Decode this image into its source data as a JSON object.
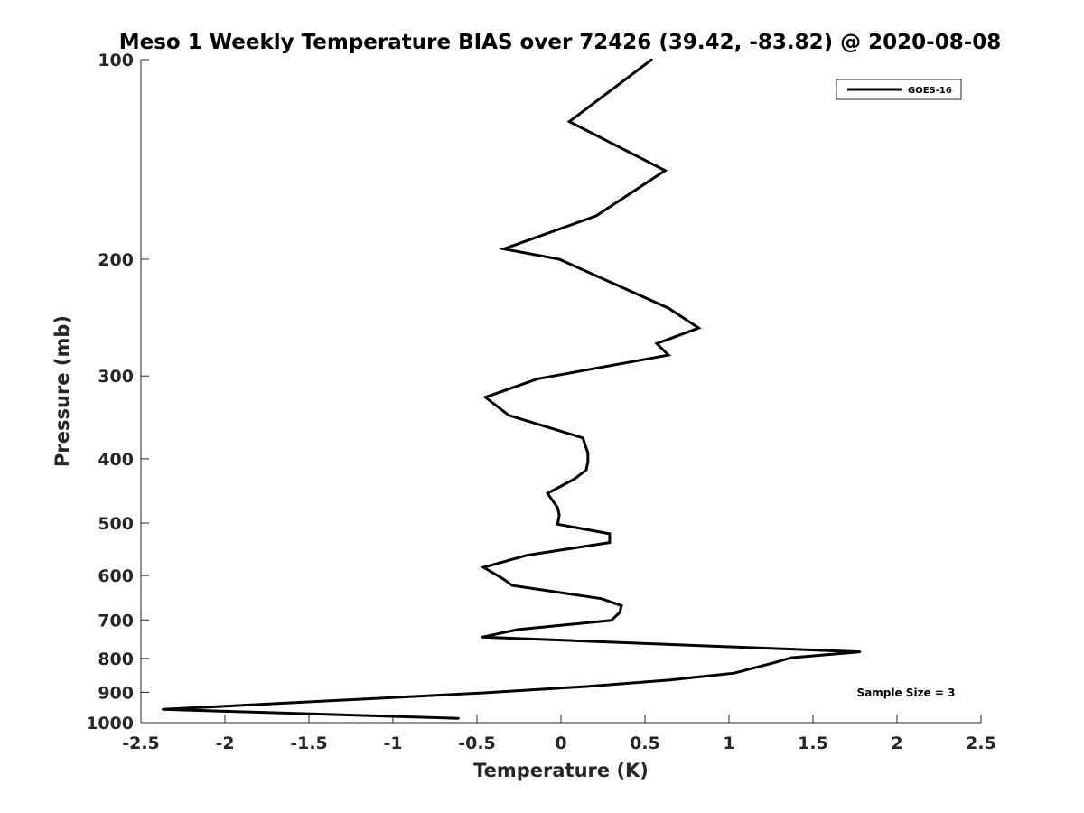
{
  "chart_data": {
    "type": "line",
    "title": "Meso 1 Weekly Temperature BIAS over 72426 (39.42, -83.82) @ 2020-08-08",
    "xlabel": "Temperature (K)",
    "ylabel": "Pressure (mb)",
    "xlim": [
      -2.5,
      2.5
    ],
    "ylim": [
      100,
      1000
    ],
    "y_scale": "log",
    "y_reversed": true,
    "x_ticks": [
      -2.5,
      -2,
      -1.5,
      -1,
      -0.5,
      0,
      0.5,
      1,
      1.5,
      2,
      2.5
    ],
    "x_tick_labels": [
      "-2.5",
      "-2",
      "-1.5",
      "-1",
      "-0.5",
      "0",
      "0.5",
      "1",
      "1.5",
      "2",
      "2.5"
    ],
    "y_ticks": [
      100,
      200,
      300,
      400,
      500,
      600,
      700,
      800,
      900,
      1000
    ],
    "y_tick_labels": [
      "100",
      "200",
      "300",
      "400",
      "500",
      "600",
      "700",
      "800",
      "900",
      "1000"
    ],
    "grid": false,
    "legend_position": "top-right",
    "series": [
      {
        "name": "GOES-16",
        "color": "#000000",
        "points": [
          [
            0.54,
            100
          ],
          [
            0.05,
            124
          ],
          [
            0.62,
            147
          ],
          [
            0.21,
            172
          ],
          [
            -0.34,
            193
          ],
          [
            -0.01,
            200
          ],
          [
            0.64,
            237
          ],
          [
            0.82,
            254
          ],
          [
            0.57,
            268
          ],
          [
            0.64,
            279
          ],
          [
            -0.14,
            303
          ],
          [
            -0.45,
            323
          ],
          [
            -0.31,
            344
          ],
          [
            0.13,
            372
          ],
          [
            0.16,
            392
          ],
          [
            0.16,
            404
          ],
          [
            0.15,
            416
          ],
          [
            0.08,
            429
          ],
          [
            -0.08,
            451
          ],
          [
            -0.02,
            474
          ],
          [
            -0.01,
            486
          ],
          [
            -0.02,
            502
          ],
          [
            0.29,
            519
          ],
          [
            0.29,
            535
          ],
          [
            -0.2,
            559
          ],
          [
            -0.46,
            583
          ],
          [
            -0.34,
            608
          ],
          [
            -0.29,
            621
          ],
          [
            0.24,
            650
          ],
          [
            0.36,
            666
          ],
          [
            0.35,
            682
          ],
          [
            0.3,
            701
          ],
          [
            -0.26,
            724
          ],
          [
            -0.47,
            743
          ],
          [
            1.78,
            782
          ],
          [
            1.37,
            798
          ],
          [
            1.27,
            812
          ],
          [
            1.03,
            842
          ],
          [
            0.65,
            862
          ],
          [
            0.15,
            882
          ],
          [
            -0.47,
            902
          ],
          [
            -2.37,
            955
          ],
          [
            -0.61,
            985
          ]
        ]
      }
    ],
    "annotations": [
      "Sample Size = 3"
    ]
  }
}
